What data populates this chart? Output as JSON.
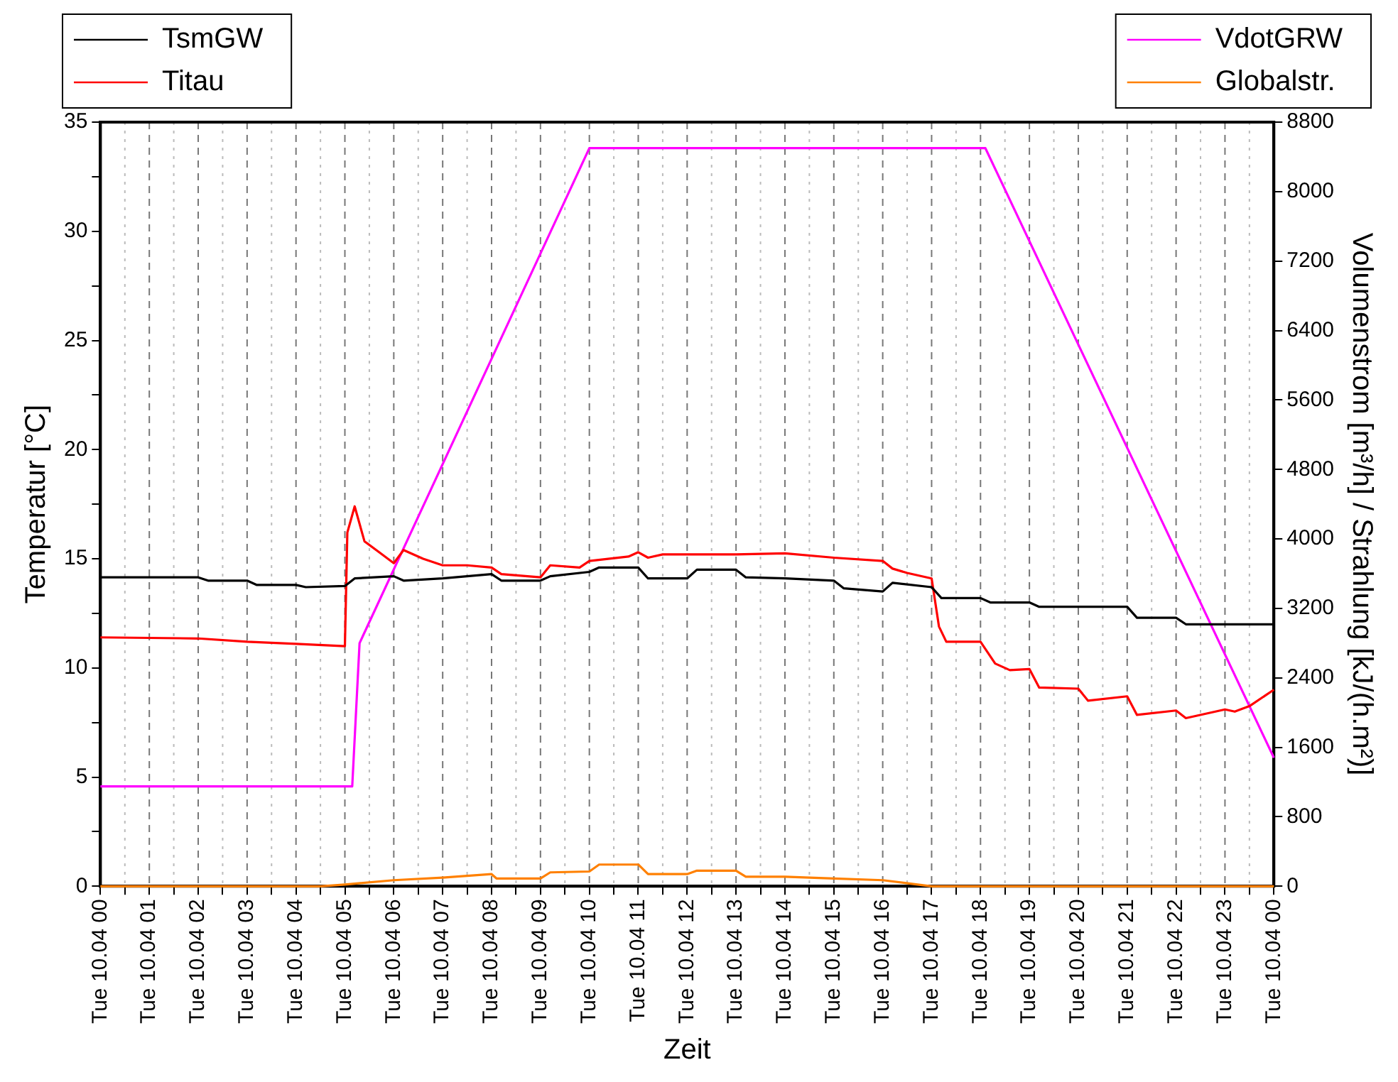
{
  "chart_data": {
    "type": "line",
    "xlabel": "Zeit",
    "ylabel": "Temperatur [°C]",
    "y2label": "Volumenstrom [m³/h] / Strahlung [kJ/(h.m²)]",
    "xlim": [
      "--04-10T00:00",
      "--04-11T00:00"
    ],
    "xticks": [
      {
        "value": "--04-10T00:00",
        "label": "Tue 10.04 00"
      },
      {
        "value": "--04-10T00:30",
        "label": null
      },
      {
        "value": "--04-10T01:00",
        "label": "Tue 10.04 01"
      },
      {
        "value": "--04-10T01:30",
        "label": null
      },
      {
        "value": "--04-10T02:00",
        "label": "Tue 10.04 02"
      },
      {
        "value": "--04-10T02:30",
        "label": null
      },
      {
        "value": "--04-10T03:00",
        "label": "Tue 10.04 03"
      },
      {
        "value": "--04-10T03:30",
        "label": null
      },
      {
        "value": "--04-10T04:00",
        "label": "Tue 10.04 04"
      },
      {
        "value": "--04-10T04:30",
        "label": null
      },
      {
        "value": "--04-10T05:00",
        "label": "Tue 10.04 05"
      },
      {
        "value": "--04-10T05:30",
        "label": null
      },
      {
        "value": "--04-10T06:00",
        "label": "Tue 10.04 06"
      },
      {
        "value": "--04-10T06:30",
        "label": null
      },
      {
        "value": "--04-10T07:00",
        "label": "Tue 10.04 07"
      },
      {
        "value": "--04-10T07:30",
        "label": null
      },
      {
        "value": "--04-10T08:00",
        "label": "Tue 10.04 08"
      },
      {
        "value": "--04-10T08:30",
        "label": null
      },
      {
        "value": "--04-10T09:00",
        "label": "Tue 10.04 09"
      },
      {
        "value": "--04-10T09:30",
        "label": null
      },
      {
        "value": "--04-10T10:00",
        "label": "Tue 10.04 10"
      },
      {
        "value": "--04-10T10:30",
        "label": null
      },
      {
        "value": "--04-10T11:00",
        "label": "Tue 10.04 11"
      },
      {
        "value": "--04-10T11:30",
        "label": null
      },
      {
        "value": "--04-10T12:00",
        "label": "Tue 10.04 12"
      },
      {
        "value": "--04-10T12:30",
        "label": null
      },
      {
        "value": "--04-10T13:00",
        "label": "Tue 10.04 13"
      },
      {
        "value": "--04-10T13:30",
        "label": null
      },
      {
        "value": "--04-10T14:00",
        "label": "Tue 10.04 14"
      },
      {
        "value": "--04-10T14:30",
        "label": null
      },
      {
        "value": "--04-10T15:00",
        "label": "Tue 10.04 15"
      },
      {
        "value": "--04-10T15:30",
        "label": null
      },
      {
        "value": "--04-10T16:00",
        "label": "Tue 10.04 16"
      },
      {
        "value": "--04-10T16:30",
        "label": null
      },
      {
        "value": "--04-10T17:00",
        "label": "Tue 10.04 17"
      },
      {
        "value": "--04-10T17:30",
        "label": null
      },
      {
        "value": "--04-10T18:00",
        "label": "Tue 10.04 18"
      },
      {
        "value": "--04-10T18:30",
        "label": null
      },
      {
        "value": "--04-10T19:00",
        "label": "Tue 10.04 19"
      },
      {
        "value": "--04-10T19:30",
        "label": null
      },
      {
        "value": "--04-10T20:00",
        "label": "Tue 10.04 20"
      },
      {
        "value": "--04-10T20:30",
        "label": null
      },
      {
        "value": "--04-10T21:00",
        "label": "Tue 10.04 21"
      },
      {
        "value": "--04-10T21:30",
        "label": null
      },
      {
        "value": "--04-10T22:00",
        "label": "Tue 10.04 22"
      },
      {
        "value": "--04-10T22:30",
        "label": null
      },
      {
        "value": "--04-10T23:00",
        "label": "Tue 10.04 23"
      },
      {
        "value": "--04-10T23:30",
        "label": null
      },
      {
        "value": "--04-11T00:00",
        "label": "Tue 10.04 00"
      }
    ],
    "ylim": [
      0,
      35
    ],
    "yticks": [
      0,
      {
        "value": 2.5,
        "label": null
      },
      5,
      {
        "value": 7.5,
        "label": null
      },
      10,
      {
        "value": 12.5,
        "label": null
      },
      15,
      {
        "value": 17.5,
        "label": null
      },
      20,
      {
        "value": 22.5,
        "label": null
      },
      25,
      {
        "value": 27.5,
        "label": null
      },
      30,
      {
        "value": 32.5,
        "label": null
      },
      35
    ],
    "y2lim": [
      0,
      8800
    ],
    "y2ticks": [
      0,
      800,
      1600,
      2400,
      3200,
      4000,
      4800,
      5600,
      6400,
      7200,
      8000,
      8800
    ],
    "grid": "x",
    "legend": "top",
    "marker": "none",
    "line_style": "solid",
    "series": [
      {
        "name": "TsmGW",
        "color": "#000000",
        "x": [
          "--04-10T00:00",
          "--04-10T02:00",
          "--04-10T02:12",
          "--04-10T03:00",
          "--04-10T03:12",
          "--04-10T04:00",
          "--04-10T04:12",
          "--04-10T05:00",
          "--04-10T05:12",
          "--04-10T06:00",
          "--04-10T06:12",
          "--04-10T07:00",
          "--04-10T08:00",
          "--04-10T08:12",
          "--04-10T09:00",
          "--04-10T09:12",
          "--04-10T10:00",
          "--04-10T10:12",
          "--04-10T11:00",
          "--04-10T11:12",
          "--04-10T12:00",
          "--04-10T12:12",
          "--04-10T13:00",
          "--04-10T13:12",
          "--04-10T14:00",
          "--04-10T15:00",
          "--04-10T15:12",
          "--04-10T16:00",
          "--04-10T16:12",
          "--04-10T17:00",
          "--04-10T17:12",
          "--04-10T18:00",
          "--04-10T18:12",
          "--04-10T19:00",
          "--04-10T19:12",
          "--04-10T20:00",
          "--04-10T21:00",
          "--04-10T21:12",
          "--04-10T22:00",
          "--04-10T22:12",
          "--04-10T23:00",
          "--04-10T23:12",
          "--04-11T00:00"
        ],
        "values": [
          14.15,
          14.15,
          14.0,
          14.0,
          13.8,
          13.8,
          13.7,
          13.75,
          14.1,
          14.2,
          14.0,
          14.1,
          14.3,
          14.0,
          14.0,
          14.2,
          14.4,
          14.6,
          14.6,
          14.1,
          14.1,
          14.5,
          14.5,
          14.15,
          14.1,
          14.0,
          13.65,
          13.5,
          13.9,
          13.7,
          13.2,
          13.2,
          13.0,
          13.0,
          12.8,
          12.8,
          12.8,
          12.3,
          12.3,
          12.0,
          12.0,
          12.0,
          12.0
        ]
      },
      {
        "name": "Titau",
        "color": "#ff0000",
        "x": [
          "--04-10T00:00",
          "--04-10T02:00",
          "--04-10T03:00",
          "--04-10T04:00",
          "--04-10T05:00",
          "--04-10T05:03",
          "--04-10T05:12",
          "--04-10T05:24",
          "--04-10T05:42",
          "--04-10T06:00",
          "--04-10T06:12",
          "--04-10T06:36",
          "--04-10T07:00",
          "--04-10T07:30",
          "--04-10T08:00",
          "--04-10T08:12",
          "--04-10T09:00",
          "--04-10T09:12",
          "--04-10T09:48",
          "--04-10T10:00",
          "--04-10T10:48",
          "--04-10T11:00",
          "--04-10T11:12",
          "--04-10T11:30",
          "--04-10T13:00",
          "--04-10T14:00",
          "--04-10T15:00",
          "--04-10T16:00",
          "--04-10T16:12",
          "--04-10T16:30",
          "--04-10T17:00",
          "--04-10T17:09",
          "--04-10T17:18",
          "--04-10T18:00",
          "--04-10T18:18",
          "--04-10T18:36",
          "--04-10T19:00",
          "--04-10T19:12",
          "--04-10T20:00",
          "--04-10T20:12",
          "--04-10T21:00",
          "--04-10T21:12",
          "--04-10T22:00",
          "--04-10T22:12",
          "--04-10T23:00",
          "--04-10T23:12",
          "--04-10T23:30",
          "--04-11T00:00"
        ],
        "values": [
          11.4,
          11.35,
          11.2,
          11.1,
          11.0,
          16.2,
          17.4,
          15.8,
          15.3,
          14.8,
          15.4,
          15.0,
          14.7,
          14.7,
          14.6,
          14.3,
          14.15,
          14.7,
          14.6,
          14.9,
          15.1,
          15.3,
          15.05,
          15.2,
          15.2,
          15.25,
          15.05,
          14.9,
          14.55,
          14.35,
          14.1,
          11.9,
          11.2,
          11.2,
          10.2,
          9.9,
          9.95,
          9.1,
          9.05,
          8.5,
          8.7,
          7.85,
          8.05,
          7.7,
          8.1,
          8.0,
          8.25,
          9.0
        ]
      },
      {
        "name": "VdotGRW",
        "color": "#ff00ff",
        "axis": "y2",
        "x": [
          "--04-10T00:00",
          "--04-10T05:09",
          "--04-10T05:18",
          "--04-10T10:00",
          "--04-10T18:06",
          "--04-11T00:00"
        ],
        "values": [
          1150,
          1150,
          2800,
          8500,
          8500,
          1480
        ]
      },
      {
        "name": "Globalstr.",
        "color": "#ff8000",
        "axis": "y2",
        "x": [
          "--04-10T00:00",
          "--04-10T04:30",
          "--04-10T05:00",
          "--04-10T06:00",
          "--04-10T07:00",
          "--04-10T08:00",
          "--04-10T08:06",
          "--04-10T09:00",
          "--04-10T09:12",
          "--04-10T10:00",
          "--04-10T10:12",
          "--04-10T11:00",
          "--04-10T11:12",
          "--04-10T12:00",
          "--04-10T12:12",
          "--04-10T13:00",
          "--04-10T13:12",
          "--04-10T14:00",
          "--04-10T15:00",
          "--04-10T16:00",
          "--04-10T17:00",
          "--04-11T00:00"
        ],
        "values": [
          0,
          0,
          20,
          70,
          100,
          140,
          90,
          90,
          160,
          170,
          250,
          250,
          140,
          140,
          180,
          180,
          110,
          110,
          90,
          70,
          0,
          0
        ]
      }
    ]
  }
}
